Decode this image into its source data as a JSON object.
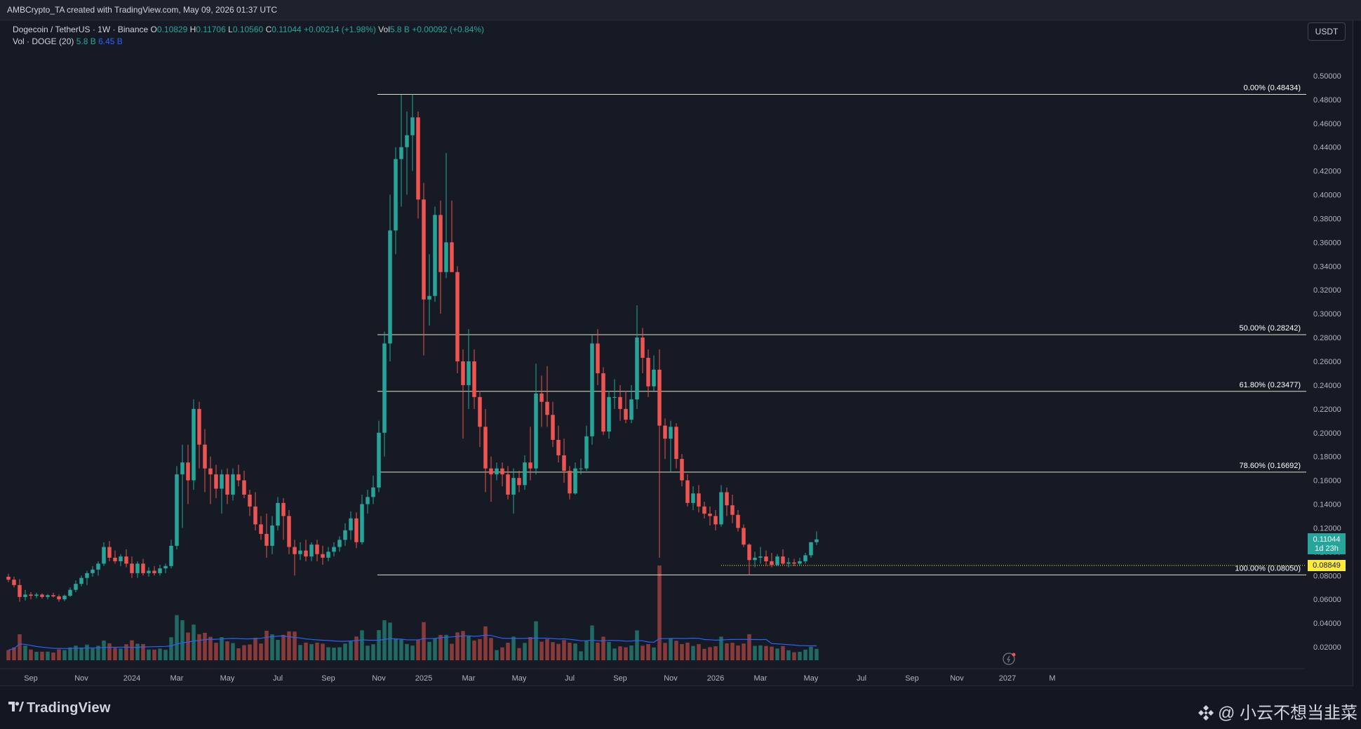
{
  "header": {
    "attribution": "AMBCrypto_TA created with TradingView.com, May 09, 2026 01:37 UTC"
  },
  "legend": {
    "symbol": "Dogecoin / TetherUS · 1W · Binance",
    "o_label": "O",
    "o": "0.10829",
    "h_label": "H",
    "h": "0.11706",
    "l_label": "L",
    "l": "0.10560",
    "c_label": "C",
    "c": "0.11044",
    "change": "+0.00214 (+1.98%)",
    "vol_label": "Vol",
    "vol": "5.8 B",
    "vol_change": "+0.00092 (+0.84%)",
    "vol_study": "Vol · DOGE (20)",
    "vol_study_val1": "5.8 B",
    "vol_study_val2": "6.45 B"
  },
  "currency": "USDT",
  "price_tags": {
    "last_price": "0.11044",
    "countdown": "1d 23h",
    "level_price": "0.08849"
  },
  "footer": {
    "brand": "TradingView",
    "watermark": "@ 小云不想当韭菜"
  },
  "colors": {
    "up": "#26a69a",
    "down": "#ef5350",
    "vol_up": "#1f6b64",
    "vol_down": "#8b3a3a",
    "vol_ma": "#2962ff",
    "fib": "#e0e0c8",
    "level_tag": "#ffeb3b"
  },
  "chart_data": {
    "type": "candlestick",
    "title": "Dogecoin / TetherUS · 1W · Binance",
    "y_axis_side": "right",
    "ylim": [
      0.01,
      0.51
    ],
    "y_ticks": [
      "0.50000",
      "0.48000",
      "0.46000",
      "0.44000",
      "0.42000",
      "0.40000",
      "0.38000",
      "0.36000",
      "0.34000",
      "0.32000",
      "0.30000",
      "0.28000",
      "0.26000",
      "0.24000",
      "0.22000",
      "0.20000",
      "0.18000",
      "0.16000",
      "0.14000",
      "0.12000",
      "0.10000",
      "0.08000",
      "0.06000",
      "0.04000",
      "0.02000"
    ],
    "x_ticks": [
      {
        "label": "Sep",
        "week": 4
      },
      {
        "label": "Nov",
        "week": 13
      },
      {
        "label": "2024",
        "week": 22
      },
      {
        "label": "Mar",
        "week": 30
      },
      {
        "label": "May",
        "week": 39
      },
      {
        "label": "Jul",
        "week": 48
      },
      {
        "label": "Sep",
        "week": 57
      },
      {
        "label": "Nov",
        "week": 66
      },
      {
        "label": "2025",
        "week": 74
      },
      {
        "label": "Mar",
        "week": 82
      },
      {
        "label": "May",
        "week": 91
      },
      {
        "label": "Jul",
        "week": 100
      },
      {
        "label": "Sep",
        "week": 109
      },
      {
        "label": "Nov",
        "week": 118
      },
      {
        "label": "2026",
        "week": 126
      },
      {
        "label": "Mar",
        "week": 134
      },
      {
        "label": "May",
        "week": 143
      },
      {
        "label": "Jul",
        "week": 152
      },
      {
        "label": "Sep",
        "week": 161
      },
      {
        "label": "Nov",
        "week": 169
      },
      {
        "label": "2027",
        "week": 178
      },
      {
        "label": "M",
        "week": 186
      }
    ],
    "candles": [
      {
        "o": 0.079,
        "h": 0.0815,
        "l": 0.0745,
        "c": 0.0765
      },
      {
        "o": 0.0765,
        "h": 0.079,
        "l": 0.07,
        "c": 0.072
      },
      {
        "o": 0.072,
        "h": 0.077,
        "l": 0.058,
        "c": 0.062
      },
      {
        "o": 0.062,
        "h": 0.068,
        "l": 0.059,
        "c": 0.064
      },
      {
        "o": 0.064,
        "h": 0.066,
        "l": 0.06,
        "c": 0.063
      },
      {
        "o": 0.063,
        "h": 0.0655,
        "l": 0.061,
        "c": 0.064
      },
      {
        "o": 0.064,
        "h": 0.065,
        "l": 0.0605,
        "c": 0.062
      },
      {
        "o": 0.062,
        "h": 0.0645,
        "l": 0.06,
        "c": 0.0635
      },
      {
        "o": 0.0635,
        "h": 0.0655,
        "l": 0.0615,
        "c": 0.0625
      },
      {
        "o": 0.0625,
        "h": 0.064,
        "l": 0.058,
        "c": 0.06
      },
      {
        "o": 0.06,
        "h": 0.064,
        "l": 0.0585,
        "c": 0.063
      },
      {
        "o": 0.063,
        "h": 0.07,
        "l": 0.062,
        "c": 0.068
      },
      {
        "o": 0.068,
        "h": 0.076,
        "l": 0.066,
        "c": 0.073
      },
      {
        "o": 0.073,
        "h": 0.08,
        "l": 0.071,
        "c": 0.078
      },
      {
        "o": 0.078,
        "h": 0.084,
        "l": 0.072,
        "c": 0.082
      },
      {
        "o": 0.082,
        "h": 0.088,
        "l": 0.079,
        "c": 0.085
      },
      {
        "o": 0.085,
        "h": 0.092,
        "l": 0.08,
        "c": 0.09
      },
      {
        "o": 0.09,
        "h": 0.108,
        "l": 0.088,
        "c": 0.104
      },
      {
        "o": 0.104,
        "h": 0.109,
        "l": 0.092,
        "c": 0.095
      },
      {
        "o": 0.095,
        "h": 0.101,
        "l": 0.09,
        "c": 0.092
      },
      {
        "o": 0.092,
        "h": 0.098,
        "l": 0.088,
        "c": 0.096
      },
      {
        "o": 0.096,
        "h": 0.102,
        "l": 0.087,
        "c": 0.09
      },
      {
        "o": 0.09,
        "h": 0.096,
        "l": 0.078,
        "c": 0.082
      },
      {
        "o": 0.082,
        "h": 0.092,
        "l": 0.078,
        "c": 0.09
      },
      {
        "o": 0.09,
        "h": 0.094,
        "l": 0.08,
        "c": 0.082
      },
      {
        "o": 0.082,
        "h": 0.087,
        "l": 0.079,
        "c": 0.084
      },
      {
        "o": 0.084,
        "h": 0.088,
        "l": 0.08,
        "c": 0.082
      },
      {
        "o": 0.082,
        "h": 0.089,
        "l": 0.08,
        "c": 0.086
      },
      {
        "o": 0.086,
        "h": 0.09,
        "l": 0.082,
        "c": 0.088
      },
      {
        "o": 0.088,
        "h": 0.11,
        "l": 0.086,
        "c": 0.105
      },
      {
        "o": 0.105,
        "h": 0.172,
        "l": 0.102,
        "c": 0.165
      },
      {
        "o": 0.165,
        "h": 0.19,
        "l": 0.12,
        "c": 0.175
      },
      {
        "o": 0.175,
        "h": 0.19,
        "l": 0.14,
        "c": 0.16
      },
      {
        "o": 0.16,
        "h": 0.228,
        "l": 0.152,
        "c": 0.22
      },
      {
        "o": 0.22,
        "h": 0.226,
        "l": 0.17,
        "c": 0.19
      },
      {
        "o": 0.19,
        "h": 0.203,
        "l": 0.15,
        "c": 0.17
      },
      {
        "o": 0.17,
        "h": 0.18,
        "l": 0.14,
        "c": 0.165
      },
      {
        "o": 0.165,
        "h": 0.173,
        "l": 0.145,
        "c": 0.153
      },
      {
        "o": 0.153,
        "h": 0.169,
        "l": 0.132,
        "c": 0.165
      },
      {
        "o": 0.165,
        "h": 0.17,
        "l": 0.14,
        "c": 0.148
      },
      {
        "o": 0.148,
        "h": 0.17,
        "l": 0.143,
        "c": 0.165
      },
      {
        "o": 0.165,
        "h": 0.173,
        "l": 0.155,
        "c": 0.16
      },
      {
        "o": 0.16,
        "h": 0.168,
        "l": 0.145,
        "c": 0.148
      },
      {
        "o": 0.148,
        "h": 0.152,
        "l": 0.13,
        "c": 0.138
      },
      {
        "o": 0.138,
        "h": 0.15,
        "l": 0.118,
        "c": 0.123
      },
      {
        "o": 0.123,
        "h": 0.13,
        "l": 0.11,
        "c": 0.115
      },
      {
        "o": 0.115,
        "h": 0.132,
        "l": 0.095,
        "c": 0.105
      },
      {
        "o": 0.105,
        "h": 0.13,
        "l": 0.098,
        "c": 0.122
      },
      {
        "o": 0.122,
        "h": 0.146,
        "l": 0.118,
        "c": 0.141
      },
      {
        "o": 0.141,
        "h": 0.145,
        "l": 0.11,
        "c": 0.13
      },
      {
        "o": 0.13,
        "h": 0.135,
        "l": 0.098,
        "c": 0.104
      },
      {
        "o": 0.104,
        "h": 0.11,
        "l": 0.08,
        "c": 0.098
      },
      {
        "o": 0.098,
        "h": 0.108,
        "l": 0.093,
        "c": 0.101
      },
      {
        "o": 0.101,
        "h": 0.11,
        "l": 0.092,
        "c": 0.096
      },
      {
        "o": 0.096,
        "h": 0.108,
        "l": 0.092,
        "c": 0.106
      },
      {
        "o": 0.106,
        "h": 0.11,
        "l": 0.092,
        "c": 0.098
      },
      {
        "o": 0.098,
        "h": 0.105,
        "l": 0.089,
        "c": 0.095
      },
      {
        "o": 0.095,
        "h": 0.104,
        "l": 0.092,
        "c": 0.1
      },
      {
        "o": 0.1,
        "h": 0.108,
        "l": 0.096,
        "c": 0.104
      },
      {
        "o": 0.104,
        "h": 0.113,
        "l": 0.1,
        "c": 0.11
      },
      {
        "o": 0.11,
        "h": 0.124,
        "l": 0.105,
        "c": 0.118
      },
      {
        "o": 0.118,
        "h": 0.134,
        "l": 0.11,
        "c": 0.128
      },
      {
        "o": 0.128,
        "h": 0.133,
        "l": 0.103,
        "c": 0.108
      },
      {
        "o": 0.108,
        "h": 0.148,
        "l": 0.106,
        "c": 0.14
      },
      {
        "o": 0.14,
        "h": 0.152,
        "l": 0.132,
        "c": 0.146
      },
      {
        "o": 0.146,
        "h": 0.164,
        "l": 0.14,
        "c": 0.154
      },
      {
        "o": 0.154,
        "h": 0.21,
        "l": 0.15,
        "c": 0.2
      },
      {
        "o": 0.2,
        "h": 0.285,
        "l": 0.18,
        "c": 0.275
      },
      {
        "o": 0.275,
        "h": 0.4,
        "l": 0.26,
        "c": 0.37
      },
      {
        "o": 0.37,
        "h": 0.44,
        "l": 0.35,
        "c": 0.43
      },
      {
        "o": 0.43,
        "h": 0.484,
        "l": 0.39,
        "c": 0.44
      },
      {
        "o": 0.44,
        "h": 0.47,
        "l": 0.4,
        "c": 0.45
      },
      {
        "o": 0.45,
        "h": 0.4843,
        "l": 0.42,
        "c": 0.465
      },
      {
        "o": 0.465,
        "h": 0.47,
        "l": 0.38,
        "c": 0.396
      },
      {
        "o": 0.396,
        "h": 0.41,
        "l": 0.265,
        "c": 0.312
      },
      {
        "o": 0.312,
        "h": 0.35,
        "l": 0.29,
        "c": 0.315
      },
      {
        "o": 0.315,
        "h": 0.39,
        "l": 0.31,
        "c": 0.383
      },
      {
        "o": 0.383,
        "h": 0.395,
        "l": 0.3,
        "c": 0.335
      },
      {
        "o": 0.335,
        "h": 0.435,
        "l": 0.33,
        "c": 0.36
      },
      {
        "o": 0.36,
        "h": 0.395,
        "l": 0.335,
        "c": 0.335
      },
      {
        "o": 0.335,
        "h": 0.34,
        "l": 0.25,
        "c": 0.26
      },
      {
        "o": 0.26,
        "h": 0.27,
        "l": 0.195,
        "c": 0.24
      },
      {
        "o": 0.24,
        "h": 0.287,
        "l": 0.22,
        "c": 0.26
      },
      {
        "o": 0.26,
        "h": 0.27,
        "l": 0.22,
        "c": 0.23
      },
      {
        "o": 0.23,
        "h": 0.235,
        "l": 0.188,
        "c": 0.205
      },
      {
        "o": 0.205,
        "h": 0.22,
        "l": 0.15,
        "c": 0.17
      },
      {
        "o": 0.17,
        "h": 0.18,
        "l": 0.142,
        "c": 0.165
      },
      {
        "o": 0.165,
        "h": 0.175,
        "l": 0.16,
        "c": 0.17
      },
      {
        "o": 0.17,
        "h": 0.175,
        "l": 0.155,
        "c": 0.165
      },
      {
        "o": 0.165,
        "h": 0.172,
        "l": 0.144,
        "c": 0.148
      },
      {
        "o": 0.148,
        "h": 0.17,
        "l": 0.132,
        "c": 0.162
      },
      {
        "o": 0.162,
        "h": 0.168,
        "l": 0.15,
        "c": 0.156
      },
      {
        "o": 0.156,
        "h": 0.181,
        "l": 0.152,
        "c": 0.175
      },
      {
        "o": 0.175,
        "h": 0.205,
        "l": 0.16,
        "c": 0.17
      },
      {
        "o": 0.17,
        "h": 0.258,
        "l": 0.165,
        "c": 0.233
      },
      {
        "o": 0.233,
        "h": 0.248,
        "l": 0.205,
        "c": 0.226
      },
      {
        "o": 0.226,
        "h": 0.256,
        "l": 0.205,
        "c": 0.215
      },
      {
        "o": 0.215,
        "h": 0.226,
        "l": 0.188,
        "c": 0.194
      },
      {
        "o": 0.194,
        "h": 0.206,
        "l": 0.175,
        "c": 0.181
      },
      {
        "o": 0.181,
        "h": 0.195,
        "l": 0.158,
        "c": 0.168
      },
      {
        "o": 0.168,
        "h": 0.172,
        "l": 0.144,
        "c": 0.149
      },
      {
        "o": 0.149,
        "h": 0.175,
        "l": 0.148,
        "c": 0.17
      },
      {
        "o": 0.17,
        "h": 0.178,
        "l": 0.165,
        "c": 0.17
      },
      {
        "o": 0.17,
        "h": 0.206,
        "l": 0.168,
        "c": 0.197
      },
      {
        "o": 0.197,
        "h": 0.282,
        "l": 0.19,
        "c": 0.275
      },
      {
        "o": 0.275,
        "h": 0.287,
        "l": 0.24,
        "c": 0.25
      },
      {
        "o": 0.25,
        "h": 0.255,
        "l": 0.198,
        "c": 0.201
      },
      {
        "o": 0.201,
        "h": 0.235,
        "l": 0.195,
        "c": 0.23
      },
      {
        "o": 0.23,
        "h": 0.245,
        "l": 0.22,
        "c": 0.23
      },
      {
        "o": 0.23,
        "h": 0.24,
        "l": 0.21,
        "c": 0.22
      },
      {
        "o": 0.22,
        "h": 0.235,
        "l": 0.208,
        "c": 0.211
      },
      {
        "o": 0.211,
        "h": 0.24,
        "l": 0.208,
        "c": 0.228
      },
      {
        "o": 0.228,
        "h": 0.307,
        "l": 0.22,
        "c": 0.28
      },
      {
        "o": 0.28,
        "h": 0.288,
        "l": 0.25,
        "c": 0.263
      },
      {
        "o": 0.263,
        "h": 0.27,
        "l": 0.23,
        "c": 0.239
      },
      {
        "o": 0.239,
        "h": 0.265,
        "l": 0.235,
        "c": 0.253
      },
      {
        "o": 0.253,
        "h": 0.27,
        "l": 0.095,
        "c": 0.206
      },
      {
        "o": 0.206,
        "h": 0.212,
        "l": 0.178,
        "c": 0.195
      },
      {
        "o": 0.195,
        "h": 0.21,
        "l": 0.167,
        "c": 0.205
      },
      {
        "o": 0.205,
        "h": 0.208,
        "l": 0.17,
        "c": 0.178
      },
      {
        "o": 0.178,
        "h": 0.182,
        "l": 0.155,
        "c": 0.16
      },
      {
        "o": 0.16,
        "h": 0.165,
        "l": 0.138,
        "c": 0.141
      },
      {
        "o": 0.141,
        "h": 0.155,
        "l": 0.135,
        "c": 0.149
      },
      {
        "o": 0.149,
        "h": 0.156,
        "l": 0.133,
        "c": 0.138
      },
      {
        "o": 0.138,
        "h": 0.142,
        "l": 0.128,
        "c": 0.132
      },
      {
        "o": 0.132,
        "h": 0.138,
        "l": 0.122,
        "c": 0.13
      },
      {
        "o": 0.13,
        "h": 0.135,
        "l": 0.118,
        "c": 0.123
      },
      {
        "o": 0.123,
        "h": 0.156,
        "l": 0.121,
        "c": 0.15
      },
      {
        "o": 0.15,
        "h": 0.154,
        "l": 0.13,
        "c": 0.139
      },
      {
        "o": 0.139,
        "h": 0.148,
        "l": 0.124,
        "c": 0.131
      },
      {
        "o": 0.131,
        "h": 0.135,
        "l": 0.117,
        "c": 0.12
      },
      {
        "o": 0.12,
        "h": 0.123,
        "l": 0.104,
        "c": 0.106
      },
      {
        "o": 0.106,
        "h": 0.107,
        "l": 0.0805,
        "c": 0.093
      },
      {
        "o": 0.093,
        "h": 0.1,
        "l": 0.087,
        "c": 0.095
      },
      {
        "o": 0.095,
        "h": 0.104,
        "l": 0.09,
        "c": 0.096
      },
      {
        "o": 0.096,
        "h": 0.101,
        "l": 0.088,
        "c": 0.092
      },
      {
        "o": 0.092,
        "h": 0.099,
        "l": 0.087,
        "c": 0.089
      },
      {
        "o": 0.089,
        "h": 0.098,
        "l": 0.088,
        "c": 0.096
      },
      {
        "o": 0.096,
        "h": 0.102,
        "l": 0.089,
        "c": 0.09
      },
      {
        "o": 0.09,
        "h": 0.095,
        "l": 0.087,
        "c": 0.091
      },
      {
        "o": 0.091,
        "h": 0.094,
        "l": 0.088,
        "c": 0.09
      },
      {
        "o": 0.09,
        "h": 0.095,
        "l": 0.0885,
        "c": 0.092
      },
      {
        "o": 0.092,
        "h": 0.099,
        "l": 0.09,
        "c": 0.097
      },
      {
        "o": 0.097,
        "h": 0.108,
        "l": 0.095,
        "c": 0.108
      },
      {
        "o": 0.108,
        "h": 0.1171,
        "l": 0.1056,
        "c": 0.1104
      }
    ],
    "volume_ma_20": "Vol · DOGE (20)",
    "fib_levels": [
      {
        "label": "0.00% (0.48434)",
        "price": 0.48434
      },
      {
        "label": "50.00% (0.28242)",
        "price": 0.28242
      },
      {
        "label": "61.80% (0.23477)",
        "price": 0.23477
      },
      {
        "label": "78.60% (0.16692)",
        "price": 0.16692
      },
      {
        "label": "100.00% (0.08050)",
        "price": 0.0805
      }
    ],
    "fib_start_week": 52,
    "horizontal_level": {
      "price": 0.08849,
      "start_week": 127
    }
  }
}
